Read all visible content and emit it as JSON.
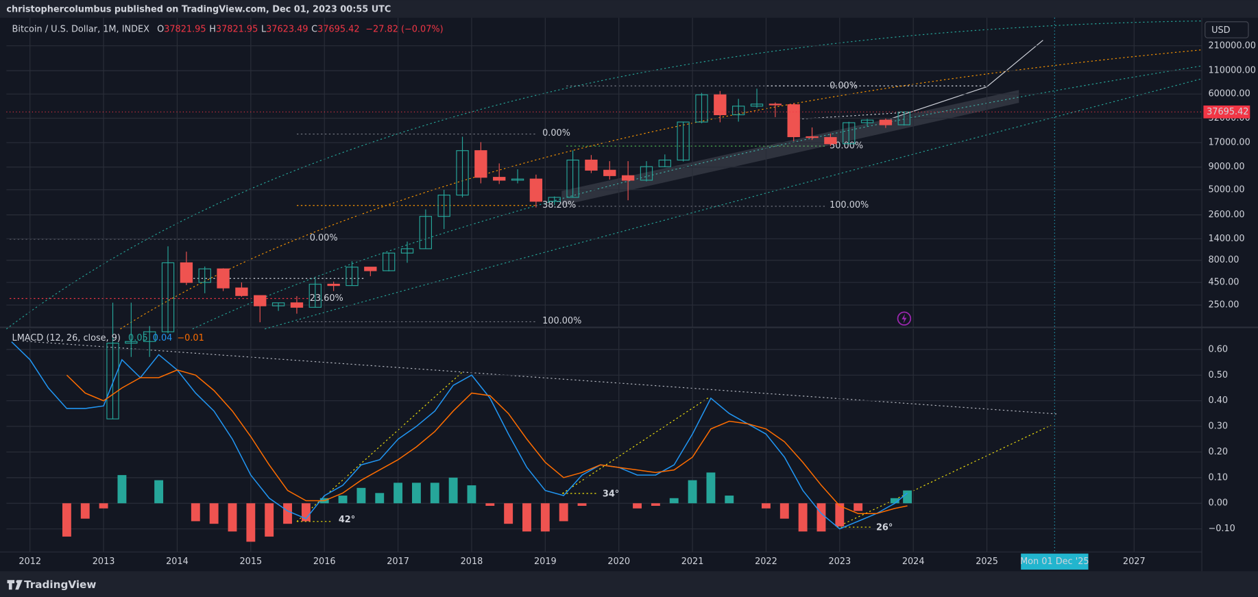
{
  "header": {
    "publisher": "christophercolumbus published on TradingView.com, Dec 01, 2023 00:55 UTC",
    "symbol": "Bitcoin / U.S. Dollar, 1M, INDEX",
    "ohlc": [
      {
        "key": "O",
        "value": "37821.95"
      },
      {
        "key": "H",
        "value": "37821.95"
      },
      {
        "key": "L",
        "value": "37623.49"
      },
      {
        "key": "C",
        "value": "37695.42"
      }
    ],
    "change": "−27.82 (−0.07%)",
    "currency": "USD"
  },
  "footer": {
    "brand": "TradingView"
  },
  "chart_data": [
    {
      "type": "candlestick",
      "scale": "log",
      "grid": true,
      "colors": {
        "up": "#26a69a",
        "down": "#ef5350"
      },
      "xlim": [
        2011.68,
        2027.92
      ],
      "ylim": [
        143,
        435000
      ],
      "yticks": [
        {
          "value": 210000,
          "label": "210000.00"
        },
        {
          "value": 110000,
          "label": "110000.00"
        },
        {
          "value": 60000,
          "label": "60000.00"
        },
        {
          "value": 32000,
          "label": "32000.00"
        },
        {
          "value": 17000,
          "label": "17000.00"
        },
        {
          "value": 9000,
          "label": "9000.00"
        },
        {
          "value": 5000,
          "label": "5000.00"
        },
        {
          "value": 2600,
          "label": "2600.00"
        },
        {
          "value": 1400,
          "label": "1400.00"
        },
        {
          "value": 800,
          "label": "800.00"
        },
        {
          "value": 450,
          "label": "450.00"
        },
        {
          "value": 250,
          "label": "250.00"
        }
      ],
      "x": [
        2013.125,
        2013.375,
        2013.625,
        2013.875,
        2014.125,
        2014.375,
        2014.625,
        2014.875,
        2015.125,
        2015.375,
        2015.625,
        2015.875,
        2016.125,
        2016.375,
        2016.625,
        2016.875,
        2017.125,
        2017.375,
        2017.625,
        2017.875,
        2018.125,
        2018.375,
        2018.625,
        2018.875,
        2019.125,
        2019.375,
        2019.625,
        2019.875,
        2020.125,
        2020.375,
        2020.625,
        2020.875,
        2021.125,
        2021.375,
        2021.625,
        2021.875,
        2022.125,
        2022.375,
        2022.625,
        2022.875,
        2023.125,
        2023.375,
        2023.625,
        2023.875
      ],
      "open": [
        13,
        93,
        97,
        125,
        750,
        450,
        640,
        390,
        320,
        245,
        265,
        236,
        430,
        415,
        670,
        610,
        965,
        1080,
        2500,
        4350,
        13800,
        6900,
        6400,
        6600,
        3700,
        4100,
        10800,
        8300,
        7200,
        6400,
        9100,
        10800,
        29000,
        58800,
        35000,
        43800,
        46200,
        45500,
        19800,
        19400,
        16500,
        28500,
        30500,
        27000
      ],
      "high": [
        266,
        266,
        145,
        1150,
        1000,
        680,
        650,
        450,
        320,
        265,
        315,
        500,
        460,
        780,
        670,
        980,
        1300,
        3000,
        5000,
        19800,
        17200,
        9900,
        8500,
        7400,
        4200,
        13900,
        12300,
        10500,
        10500,
        10500,
        12500,
        29300,
        61800,
        64900,
        52900,
        69000,
        48200,
        47500,
        25200,
        21500,
        29200,
        31500,
        31800,
        38000
      ],
      "low": [
        13,
        65,
        65,
        120,
        420,
        340,
        360,
        310,
        160,
        215,
        200,
        235,
        360,
        415,
        530,
        600,
        750,
        1080,
        1800,
        4100,
        5900,
        5800,
        5900,
        3150,
        3350,
        4100,
        7700,
        6500,
        3800,
        6200,
        9000,
        10400,
        28100,
        28800,
        29300,
        42000,
        32900,
        17600,
        18200,
        15500,
        16500,
        25800,
        24900,
        26500
      ],
      "close": [
        93,
        97,
        125,
        750,
        450,
        640,
        390,
        320,
        245,
        265,
        236,
        430,
        415,
        670,
        610,
        965,
        1080,
        2500,
        4350,
        13800,
        6900,
        6400,
        6600,
        3700,
        4100,
        10800,
        8300,
        7200,
        6400,
        9100,
        10800,
        29000,
        58800,
        35000,
        43800,
        46200,
        45500,
        19800,
        19400,
        16500,
        28500,
        30500,
        27000,
        37695.42
      ],
      "last_price": {
        "value": 37695.42,
        "label": "37695.42",
        "color": "#f23645"
      },
      "annotations": [
        {
          "text": "0.00%",
          "color": "#9598a1"
        },
        {
          "text": "23.60%",
          "color": "#f23645"
        },
        {
          "text": "0.00%",
          "color": "#9598a1"
        },
        {
          "text": "38.20%",
          "color": "#ff9800"
        },
        {
          "text": "100.00%",
          "color": "#9598a1"
        },
        {
          "text": "0.00%",
          "color": "#9598a1"
        },
        {
          "text": "50.00%",
          "color": "#4caf50"
        },
        {
          "text": "100.00%",
          "color": "#9598a1"
        }
      ]
    },
    {
      "type": "macd",
      "grid": true,
      "title": "LMACD (12, 26, close, 9)",
      "legend_values": [
        {
          "text": "0.05",
          "color": "#26a69a"
        },
        {
          "text": "0.04",
          "color": "#2196f3"
        },
        {
          "text": "−0.01",
          "color": "#ff6d00"
        }
      ],
      "xlim": [
        2011.68,
        2027.92
      ],
      "xticks": [
        2012,
        2013,
        2014,
        2015,
        2016,
        2017,
        2018,
        2019,
        2020,
        2021,
        2022,
        2023,
        2024,
        2025,
        2027
      ],
      "crosshair": {
        "value": 2025.92,
        "label": "Mon 01 Dec '25",
        "color": "#22b5ce"
      },
      "ylim": [
        -0.19,
        0.68
      ],
      "yticks": [
        {
          "value": 0.6,
          "label": "0.60"
        },
        {
          "value": 0.5,
          "label": "0.50"
        },
        {
          "value": 0.4,
          "label": "0.40"
        },
        {
          "value": 0.3,
          "label": "0.30"
        },
        {
          "value": 0.2,
          "label": "0.20"
        },
        {
          "value": 0.1,
          "label": "0.10"
        },
        {
          "value": 0,
          "label": "0.00"
        },
        {
          "value": -0.1,
          "label": "−0.10"
        }
      ],
      "x": [
        2011.75,
        2012,
        2012.25,
        2012.5,
        2012.75,
        2013,
        2013.25,
        2013.5,
        2013.75,
        2014,
        2014.25,
        2014.5,
        2014.75,
        2015,
        2015.25,
        2015.5,
        2015.75,
        2016,
        2016.25,
        2016.5,
        2016.75,
        2017,
        2017.25,
        2017.5,
        2017.75,
        2018,
        2018.25,
        2018.5,
        2018.75,
        2019,
        2019.25,
        2019.5,
        2019.75,
        2020,
        2020.25,
        2020.5,
        2020.75,
        2021,
        2021.25,
        2021.5,
        2021.75,
        2022,
        2022.25,
        2022.5,
        2022.75,
        2023,
        2023.25,
        2023.5,
        2023.75,
        2023.92
      ],
      "series": [
        {
          "color": "#2196f3",
          "values": [
            0.63,
            0.56,
            0.45,
            0.37,
            0.37,
            0.38,
            0.56,
            0.49,
            0.58,
            0.52,
            0.43,
            0.36,
            0.25,
            0.11,
            0.02,
            -0.03,
            -0.06,
            0.03,
            0.07,
            0.15,
            0.17,
            0.25,
            0.3,
            0.36,
            0.46,
            0.5,
            0.41,
            0.27,
            0.14,
            0.05,
            0.03,
            0.11,
            0.15,
            0.14,
            0.11,
            0.11,
            0.15,
            0.27,
            0.41,
            0.35,
            0.31,
            0.27,
            0.18,
            0.05,
            -0.04,
            -0.1,
            -0.07,
            -0.04,
            0.0,
            0.04
          ]
        },
        {
          "color": "#ff6d00",
          "values": [
            null,
            null,
            null,
            0.5,
            0.43,
            0.4,
            0.45,
            0.49,
            0.49,
            0.52,
            0.5,
            0.44,
            0.36,
            0.26,
            0.15,
            0.05,
            0.01,
            0.01,
            0.04,
            0.09,
            0.13,
            0.17,
            0.22,
            0.28,
            0.36,
            0.43,
            0.42,
            0.35,
            0.25,
            0.16,
            0.1,
            0.12,
            0.15,
            0.14,
            0.13,
            0.12,
            0.13,
            0.18,
            0.29,
            0.32,
            0.31,
            0.29,
            0.24,
            0.16,
            0.07,
            -0.01,
            -0.04,
            -0.04,
            -0.02,
            -0.01
          ]
        }
      ],
      "histogram": {
        "colors": {
          "positive": "#26a69a",
          "negative": "#ef5350"
        },
        "values": [
          null,
          null,
          null,
          -0.13,
          -0.06,
          -0.02,
          0.11,
          0.0,
          0.09,
          0.0,
          -0.07,
          -0.08,
          -0.11,
          -0.15,
          -0.13,
          -0.08,
          -0.07,
          0.02,
          0.03,
          0.06,
          0.04,
          0.08,
          0.08,
          0.08,
          0.1,
          0.07,
          -0.01,
          -0.08,
          -0.11,
          -0.11,
          -0.07,
          -0.01,
          0.0,
          0.0,
          -0.02,
          -0.01,
          0.02,
          0.09,
          0.12,
          0.03,
          0.0,
          -0.02,
          -0.06,
          -0.11,
          -0.11,
          -0.09,
          -0.03,
          0.0,
          0.02,
          0.05
        ]
      },
      "annotations": [
        {
          "text": "42°",
          "color": "#f5e50b"
        },
        {
          "text": "34°",
          "color": "#f5e50b"
        },
        {
          "text": "26°",
          "color": "#f5e50b"
        }
      ]
    }
  ]
}
